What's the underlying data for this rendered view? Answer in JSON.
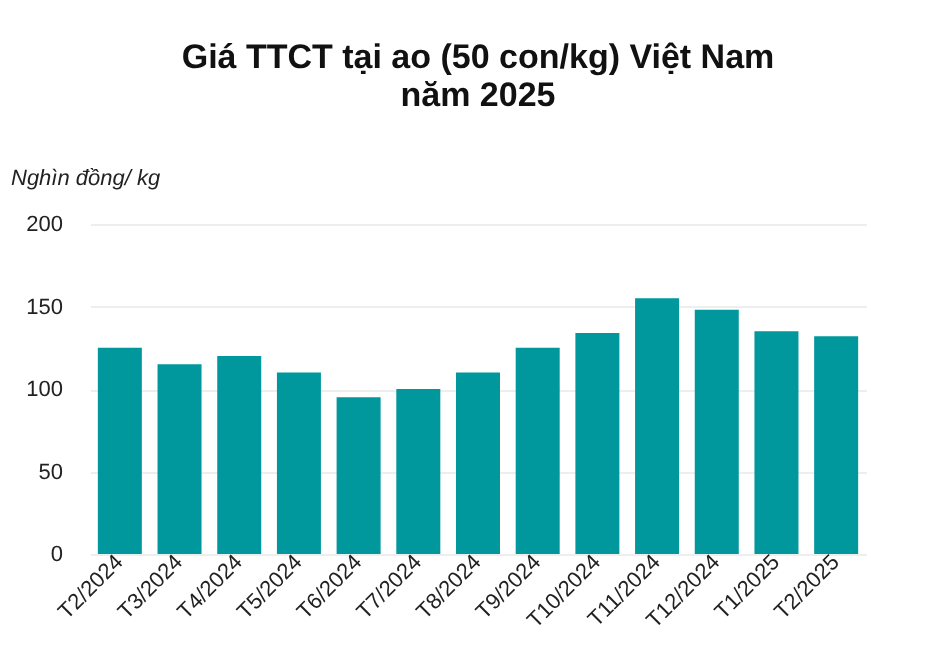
{
  "chart_data": {
    "type": "bar",
    "title": "Giá TTCT tại ao (50 con/kg) Việt Nam\nnăm 2025",
    "ylabel": "Nghìn đồng/ kg",
    "categories": [
      "T2/2024",
      "T3/2024",
      "T4/2024",
      "T5/2024",
      "T6/2024",
      "T7/2024",
      "T8/2024",
      "T9/2024",
      "T10/2024",
      "T11/2024",
      "T12/2024",
      "T1/2025",
      "T2/2025"
    ],
    "values": [
      125,
      115,
      120,
      110,
      95,
      100,
      110,
      125,
      134,
      155,
      148,
      135,
      132
    ],
    "color": "#00979d",
    "ylim": [
      0,
      200
    ],
    "yticks": [
      0,
      50,
      100,
      150,
      200
    ],
    "grid": "y"
  }
}
